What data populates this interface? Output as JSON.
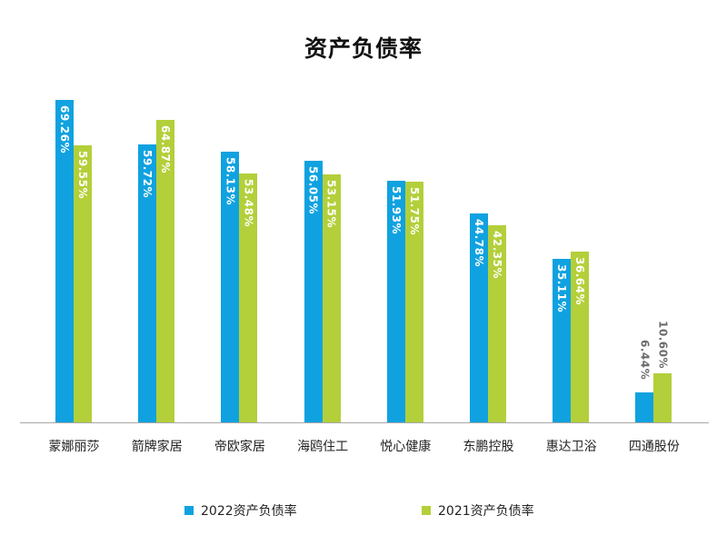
{
  "chart_data": {
    "type": "bar",
    "title": "资产负债率",
    "xlabel": "",
    "ylabel": "",
    "ylim": [
      0,
      70
    ],
    "grid": false,
    "legend_position": "bottom",
    "categories": [
      "蒙娜丽莎",
      "箭牌家居",
      "帝欧家居",
      "海鸥住工",
      "悦心健康",
      "东鹏控股",
      "惠达卫浴",
      "四通股份"
    ],
    "series": [
      {
        "name": "2022资产负债率",
        "color": "#10a2e0",
        "values": [
          69.26,
          59.72,
          58.13,
          56.05,
          51.93,
          44.78,
          35.11,
          6.44
        ],
        "labels": [
          "69.26%",
          "59.72%",
          "58.13%",
          "56.05%",
          "51.93%",
          "44.78%",
          "35.11%",
          "6.44%"
        ]
      },
      {
        "name": "2021资产负债率",
        "color": "#b3cf3a",
        "values": [
          59.55,
          64.87,
          53.48,
          53.15,
          51.75,
          42.35,
          36.64,
          10.6
        ],
        "labels": [
          "59.55%",
          "64.87%",
          "53.48%",
          "53.15%",
          "51.75%",
          "42.35%",
          "36.64%",
          "10.60%"
        ]
      }
    ]
  },
  "legend": {
    "items": [
      {
        "label": "2022资产负债率",
        "color": "#10a2e0"
      },
      {
        "label": "2021资产负债率",
        "color": "#b3cf3a"
      }
    ]
  }
}
